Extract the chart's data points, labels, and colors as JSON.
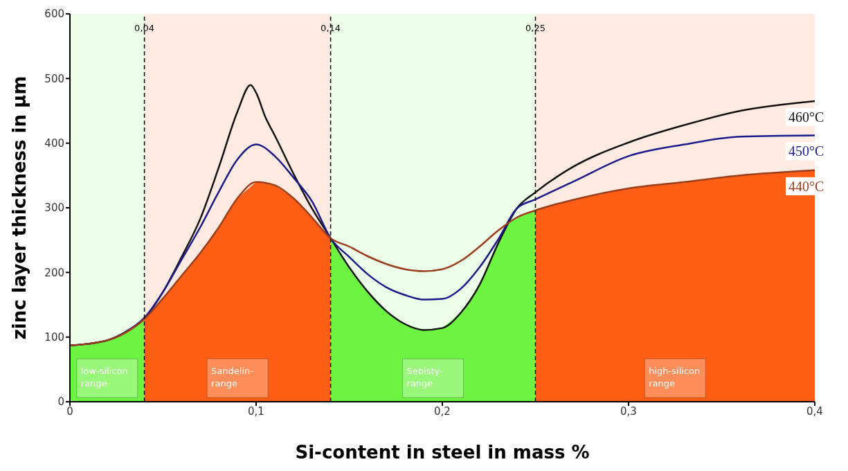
{
  "chart_data": {
    "type": "line",
    "xlabel": "Si-content in steel in mass %",
    "ylabel": "zinc layer thickness in µm",
    "xlim": [
      0,
      0.4
    ],
    "xticks": [
      0,
      {
        "value": 0.1,
        "label": "0,1"
      },
      {
        "value": 0.2,
        "label": "0,2"
      },
      {
        "value": 0.3,
        "label": "0,3"
      },
      {
        "value": 0.4,
        "label": "0,4"
      }
    ],
    "ylim": [
      0,
      600
    ],
    "yticks": [
      0,
      100,
      200,
      300,
      400,
      500,
      600
    ],
    "grid": false,
    "legend": false,
    "marker": "none",
    "line_style": "solid",
    "series": [
      {
        "name": "460°C",
        "color": "#111111",
        "x": [
          0,
          0.02,
          0.03,
          0.04,
          0.05,
          0.06,
          0.07,
          0.08,
          0.09,
          0.097,
          0.1,
          0.105,
          0.11,
          0.12,
          0.13,
          0.14,
          0.15,
          0.16,
          0.17,
          0.18,
          0.19,
          0.2,
          0.21,
          0.22,
          0.23,
          0.24,
          0.25,
          0.27,
          0.3,
          0.33,
          0.36,
          0.4
        ],
        "values": [
          87,
          95,
          108,
          129,
          170,
          224,
          283,
          363,
          449,
          490,
          478,
          440,
          412,
          353,
          299,
          253,
          208,
          170,
          140,
          120,
          111,
          114,
          138,
          181,
          245,
          299,
          324,
          363,
          401,
          428,
          450,
          465
        ]
      },
      {
        "name": "450°C",
        "color": "#1a1a8c",
        "x": [
          0,
          0.02,
          0.03,
          0.04,
          0.05,
          0.06,
          0.07,
          0.08,
          0.09,
          0.1,
          0.11,
          0.12,
          0.13,
          0.14,
          0.15,
          0.16,
          0.17,
          0.18,
          0.19,
          0.2,
          0.21,
          0.22,
          0.23,
          0.24,
          0.25,
          0.27,
          0.3,
          0.33,
          0.36,
          0.4
        ],
        "values": [
          87,
          95,
          108,
          130,
          170,
          220,
          270,
          325,
          375,
          398,
          380,
          347,
          310,
          253,
          224,
          197,
          177,
          165,
          158,
          159,
          175,
          208,
          251,
          299,
          313,
          340,
          380,
          398,
          410,
          412
        ]
      },
      {
        "name": "440°C",
        "color": "#9c3d1c",
        "x": [
          0,
          0.02,
          0.03,
          0.04,
          0.05,
          0.06,
          0.07,
          0.08,
          0.09,
          0.1,
          0.11,
          0.12,
          0.13,
          0.14,
          0.15,
          0.16,
          0.17,
          0.18,
          0.19,
          0.2,
          0.21,
          0.22,
          0.23,
          0.24,
          0.25,
          0.27,
          0.3,
          0.33,
          0.36,
          0.4
        ],
        "values": [
          87,
          95,
          107,
          128,
          160,
          195,
          230,
          270,
          315,
          340,
          335,
          315,
          285,
          253,
          240,
          225,
          213,
          205,
          202,
          205,
          218,
          240,
          265,
          285,
          296,
          312,
          330,
          340,
          350,
          358
        ]
      }
    ],
    "ref_lines": [
      {
        "axis": "x",
        "value": 0.04,
        "label": "0,04",
        "color": "#000000",
        "line_style": "dashed"
      },
      {
        "axis": "x",
        "value": 0.14,
        "label": "0,14",
        "color": "#000000",
        "line_style": "dashed"
      },
      {
        "axis": "x",
        "value": 0.25,
        "label": "0,25",
        "color": "#000000",
        "line_style": "dashed"
      }
    ],
    "bands": [
      {
        "axis": "x",
        "from": 0,
        "to": 0.04,
        "label": "low-silicon range",
        "color": "#6ef542"
      },
      {
        "axis": "x",
        "from": 0.04,
        "to": 0.14,
        "label": "Sandelin-range",
        "color": "#ff5e14"
      },
      {
        "axis": "x",
        "from": 0.14,
        "to": 0.25,
        "label": "Sebisty-range",
        "color": "#6ef542"
      },
      {
        "axis": "x",
        "from": 0.25,
        "to": 0.4,
        "label": "high-silicon range",
        "color": "#ff5e14"
      }
    ]
  }
}
